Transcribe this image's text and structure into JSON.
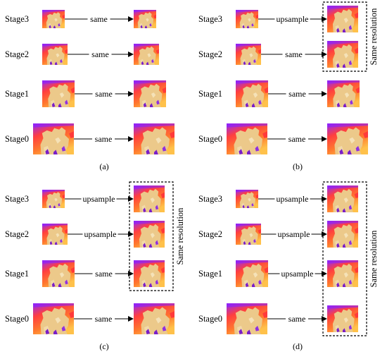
{
  "colors": {
    "depth_far": "#8f28ff",
    "depth_mid": "#ff5a2e",
    "depth_near": "#ffd24a",
    "subject": "#ecc98a",
    "subject_dark": "#7a1ec8",
    "arrow": "#000000",
    "dashed_box": "#000000"
  },
  "panels": [
    {
      "caption": "(a)",
      "rows": [
        {
          "stage": "Stage3",
          "op": "same"
        },
        {
          "stage": "Stage2",
          "op": "same"
        },
        {
          "stage": "Stage1",
          "op": "same"
        },
        {
          "stage": "Stage0",
          "op": "same"
        }
      ],
      "group_label": ""
    },
    {
      "caption": "(b)",
      "rows": [
        {
          "stage": "Stage3",
          "op": "upsample"
        },
        {
          "stage": "Stage2",
          "op": "same"
        },
        {
          "stage": "Stage1",
          "op": "same"
        },
        {
          "stage": "Stage0",
          "op": "same"
        }
      ],
      "group_label": "Same resolution"
    },
    {
      "caption": "(c)",
      "rows": [
        {
          "stage": "Stage3",
          "op": "upsample"
        },
        {
          "stage": "Stage2",
          "op": "upsample"
        },
        {
          "stage": "Stage1",
          "op": "same"
        },
        {
          "stage": "Stage0",
          "op": "same"
        }
      ],
      "group_label": "Same resolution"
    },
    {
      "caption": "(d)",
      "rows": [
        {
          "stage": "Stage3",
          "op": "upsample"
        },
        {
          "stage": "Stage2",
          "op": "upsample"
        },
        {
          "stage": "Stage1",
          "op": "upsample"
        },
        {
          "stage": "Stage0",
          "op": "same"
        }
      ],
      "group_label": "Same resolution"
    }
  ]
}
